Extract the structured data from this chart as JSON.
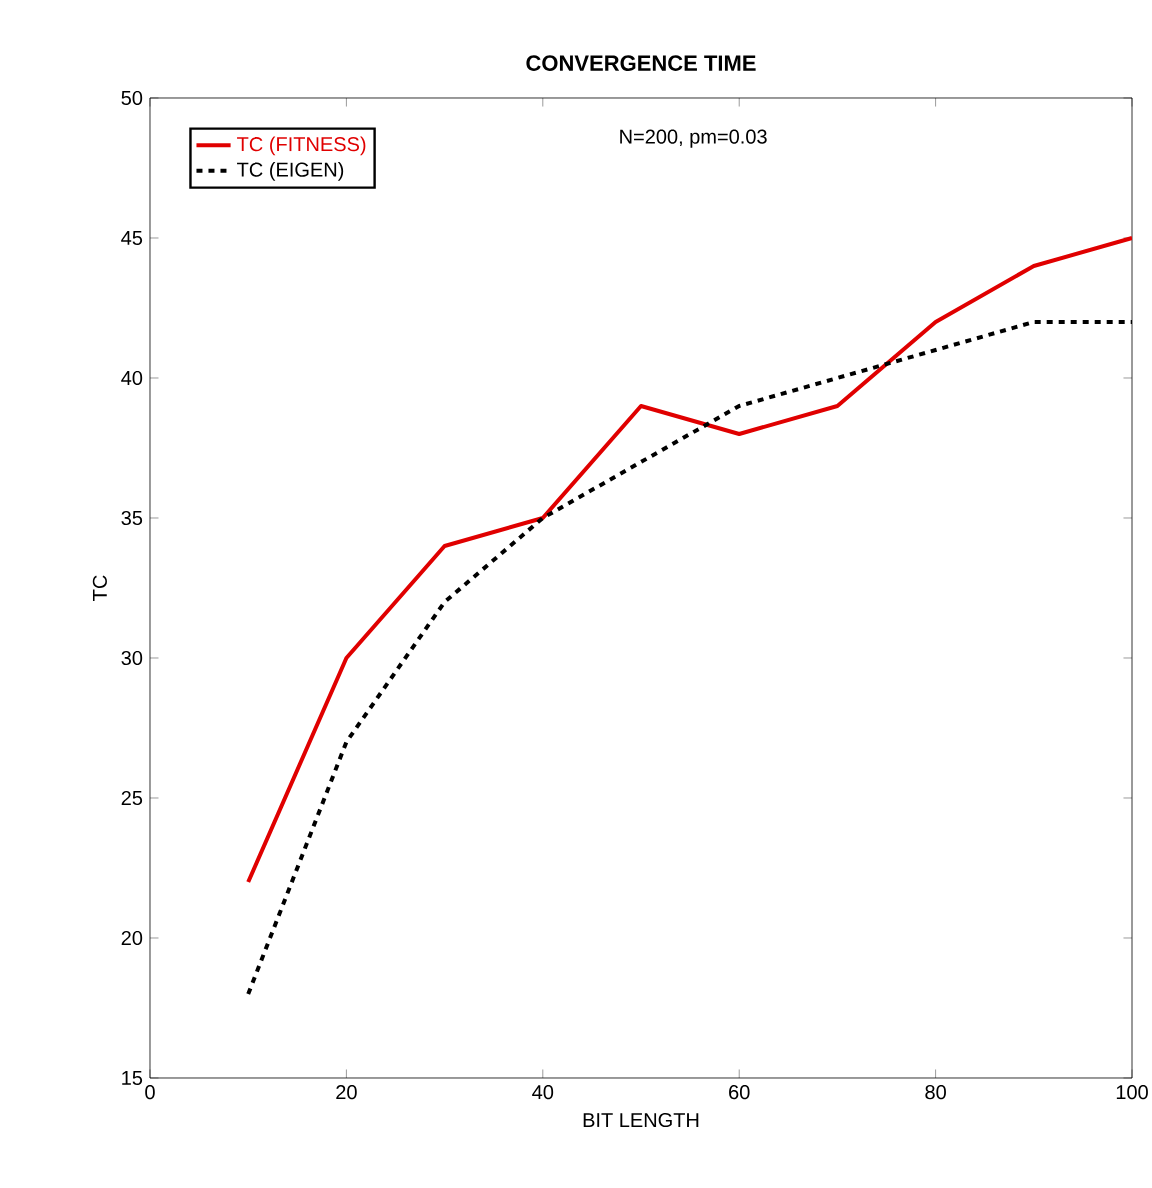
{
  "chart_data": {
    "type": "line",
    "title": "CONVERGENCE TIME",
    "xlabel": "BIT LENGTH",
    "ylabel": "TC",
    "annotations": [
      "N=200, pm=0.03"
    ],
    "x": [
      10,
      20,
      30,
      40,
      50,
      60,
      70,
      80,
      90,
      100
    ],
    "series": [
      {
        "name": "TC (FITNESS)",
        "color": "#e00000",
        "line_style": "solid",
        "values": [
          22,
          30,
          34,
          35,
          39,
          38,
          39,
          42,
          44,
          45
        ]
      },
      {
        "name": "TC (EIGEN)",
        "color": "#000000",
        "line_style": "dashed",
        "values": [
          18,
          27,
          32,
          35,
          37,
          39,
          40,
          41,
          42,
          42
        ]
      }
    ],
    "xlim": [
      0,
      100
    ],
    "xticks": [
      0,
      20,
      40,
      60,
      80,
      100
    ],
    "ylim": [
      15,
      50
    ],
    "yticks": [
      15,
      20,
      25,
      30,
      35,
      40,
      45,
      50
    ],
    "grid": false,
    "legend": "top left",
    "marker": "none"
  }
}
